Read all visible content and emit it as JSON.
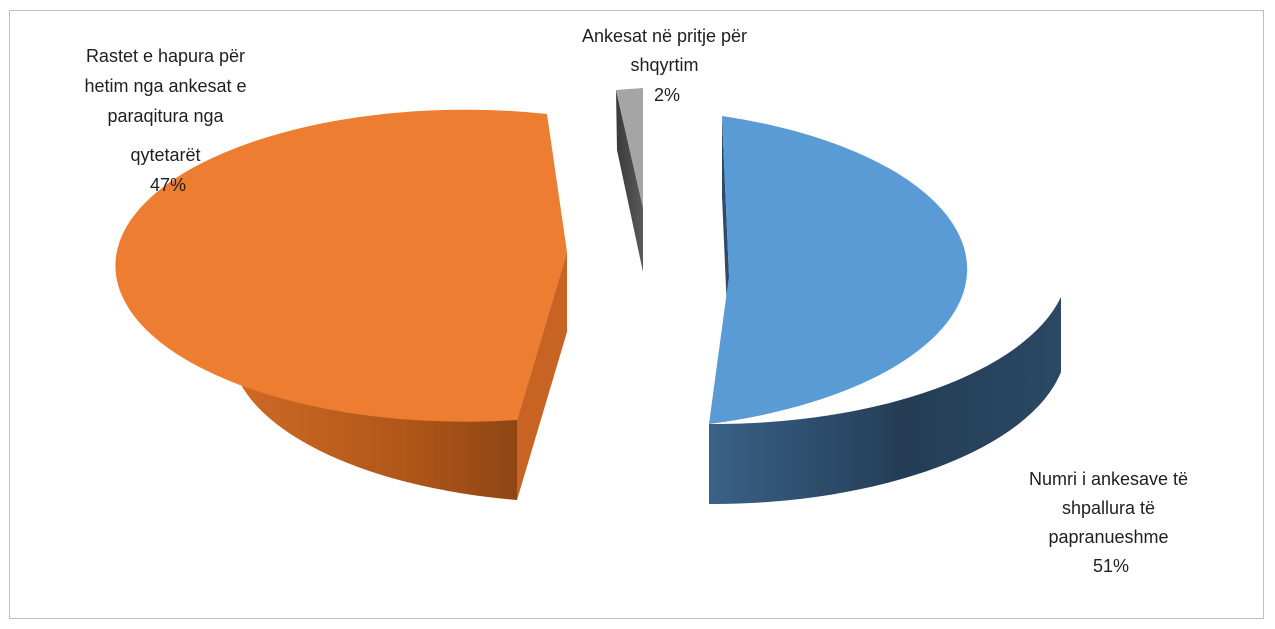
{
  "chart_data": {
    "type": "pie",
    "style": "3d-exploded",
    "slices": [
      {
        "label": "Numri i ankesave të shpallura të papranueshme",
        "label_lines": [
          "Numri i ankesave të",
          "shpallura të",
          "papranueshme"
        ],
        "value": 51,
        "value_label": "51%",
        "color": "#5b9bd5",
        "side_color": "#2e4a66"
      },
      {
        "label": "Rastet e hapura për hetim nga ankesat e paraqitura nga qytetarët",
        "label_lines": [
          "Rastet e hapura për",
          "hetim nga ankesat e",
          "paraqitura nga",
          "qytetarët"
        ],
        "value": 47,
        "value_label": "47%",
        "color": "#ed7d31",
        "side_color": "#b95b1d"
      },
      {
        "label": "Ankesat në pritje për shqyrtim",
        "label_lines": [
          "Ankesat në pritje për",
          "shqyrtim"
        ],
        "value": 2,
        "value_label": "2%",
        "color": "#a5a5a5",
        "side_color": "#4a4a4a"
      }
    ]
  }
}
